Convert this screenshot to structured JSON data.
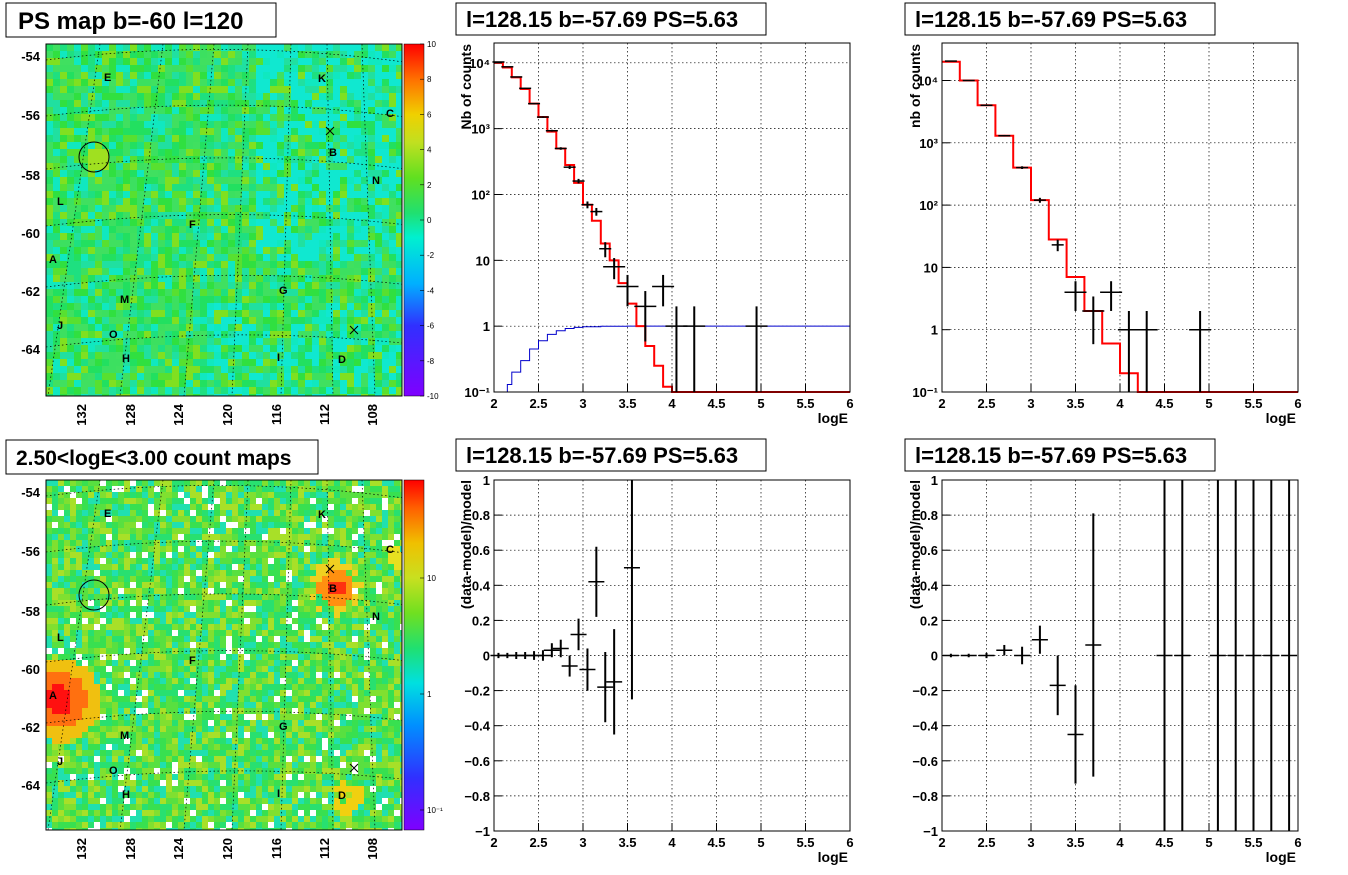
{
  "colors": {
    "red_model": "#ff0000",
    "blue_exposure": "#0000cc",
    "data": "#000000"
  },
  "chart_data": [
    {
      "id": "ps-map",
      "type": "heatmap",
      "title": "PS map b=-60 l=120",
      "xticks": [
        "132",
        "128",
        "124",
        "120",
        "116",
        "112",
        "108"
      ],
      "yticks": [
        "-54",
        "-56",
        "-58",
        "-60",
        "-62",
        "-64"
      ],
      "colorbar": {
        "min": -10,
        "max": 10,
        "ticks": [
          "10",
          "8",
          "6",
          "4",
          "2",
          "0",
          "-2",
          "-4",
          "-6",
          "-8",
          "-10"
        ]
      },
      "sources": [
        "E",
        "K",
        "C",
        "B",
        "N",
        "L",
        "F",
        "A",
        "G",
        "M",
        "J",
        "O",
        "H",
        "I",
        "D"
      ]
    },
    {
      "id": "spectrum-1",
      "type": "line",
      "title": "l=128.15 b=-57.69 PS=5.63",
      "xlabel": "logE",
      "ylabel": "Nb of counts",
      "xlim": [
        2,
        6
      ],
      "ylim": [
        0.1,
        20000
      ],
      "log_y": true,
      "xticks": [
        "2",
        "2.5",
        "3",
        "3.5",
        "4",
        "4.5",
        "5",
        "5.5",
        "6"
      ],
      "yticks": [
        "10⁴",
        "10³",
        "10²",
        "10",
        "1",
        "10⁻¹"
      ],
      "model": {
        "edges": [
          2,
          2.1,
          2.2,
          2.3,
          2.4,
          2.5,
          2.6,
          2.7,
          2.8,
          2.9,
          3.0,
          3.1,
          3.2,
          3.3,
          3.4,
          3.5,
          3.6,
          3.7,
          3.8,
          3.9,
          4.0,
          6.0
        ],
        "values": [
          10000,
          8500,
          6000,
          4000,
          2400,
          1500,
          900,
          500,
          280,
          150,
          70,
          40,
          18,
          10,
          4.5,
          2.2,
          1.0,
          0.5,
          0.25,
          0.12,
          0.1
        ]
      },
      "exposure": {
        "edges": [
          2,
          2.1,
          2.15,
          2.2,
          2.3,
          2.4,
          2.5,
          2.6,
          2.7,
          2.8,
          2.9,
          3.0,
          3.2,
          3.5,
          6.0
        ],
        "values": [
          0.1,
          0.1,
          0.13,
          0.2,
          0.3,
          0.45,
          0.6,
          0.75,
          0.85,
          0.92,
          0.96,
          0.98,
          0.995,
          1.0
        ]
      },
      "data": [
        [
          2.05,
          10300
        ],
        [
          2.15,
          8700
        ],
        [
          2.25,
          6100
        ],
        [
          2.35,
          4100
        ],
        [
          2.45,
          2400
        ],
        [
          2.55,
          1500
        ],
        [
          2.65,
          930
        ],
        [
          2.75,
          500
        ],
        [
          2.85,
          260
        ],
        [
          2.95,
          160
        ],
        [
          3.05,
          70
        ],
        [
          3.15,
          55
        ],
        [
          3.25,
          15
        ],
        [
          3.35,
          8
        ],
        [
          3.5,
          4
        ],
        [
          3.7,
          2
        ],
        [
          3.9,
          4
        ],
        [
          4.05,
          1
        ],
        [
          4.25,
          1
        ],
        [
          4.95,
          1
        ]
      ]
    },
    {
      "id": "spectrum-2",
      "type": "line",
      "title": "l=128.15 b=-57.69 PS=5.63",
      "xlabel": "logE",
      "ylabel": "nb of counts",
      "xlim": [
        2,
        6
      ],
      "ylim": [
        0.1,
        40000
      ],
      "log_y": true,
      "xticks": [
        "2",
        "2.5",
        "3",
        "3.5",
        "4",
        "4.5",
        "5",
        "5.5",
        "6"
      ],
      "yticks": [
        "10⁴",
        "10³",
        "10²",
        "10",
        "1",
        "10⁻¹"
      ],
      "model": {
        "edges": [
          2,
          2.2,
          2.4,
          2.6,
          2.8,
          3.0,
          3.2,
          3.4,
          3.6,
          3.8,
          4.0,
          4.2,
          6.0
        ],
        "values": [
          20000,
          10000,
          4000,
          1300,
          400,
          120,
          28,
          7,
          2,
          0.6,
          0.2,
          0.1
        ]
      },
      "data": [
        [
          2.1,
          20500
        ],
        [
          2.3,
          10000
        ],
        [
          2.5,
          4000
        ],
        [
          2.7,
          1300
        ],
        [
          2.9,
          400
        ],
        [
          3.1,
          120
        ],
        [
          3.3,
          23
        ],
        [
          3.5,
          4
        ],
        [
          3.7,
          2
        ],
        [
          3.9,
          4
        ],
        [
          4.1,
          1
        ],
        [
          4.3,
          1
        ],
        [
          4.9,
          1
        ]
      ]
    },
    {
      "id": "count-map",
      "type": "heatmap",
      "title": "2.50<logE<3.00 count maps",
      "xticks": [
        "132",
        "128",
        "124",
        "120",
        "116",
        "112",
        "108"
      ],
      "yticks": [
        "-54",
        "-56",
        "-58",
        "-60",
        "-62",
        "-64"
      ],
      "colorbar": {
        "log_scale": true,
        "ticks": [
          "10",
          "1",
          "10⁻¹"
        ]
      },
      "sources": [
        "E",
        "K",
        "C",
        "B",
        "N",
        "L",
        "F",
        "A",
        "G",
        "M",
        "J",
        "O",
        "H",
        "I",
        "D"
      ]
    },
    {
      "id": "residual-1",
      "type": "scatter",
      "title": "l=128.15 b=-57.69 PS=5.63",
      "xlabel": "logE",
      "ylabel": "(data-model)/model",
      "xlim": [
        2,
        6
      ],
      "ylim": [
        -1,
        1
      ],
      "xticks": [
        "2",
        "2.5",
        "3",
        "3.5",
        "4",
        "4.5",
        "5",
        "5.5",
        "6"
      ],
      "yticks": [
        "1",
        "0.8",
        "0.6",
        "0.4",
        "0.2",
        "0",
        "−0.2",
        "−0.4",
        "−0.6",
        "−0.8",
        "−1"
      ],
      "data": [
        [
          2.05,
          0.0,
          0.015
        ],
        [
          2.15,
          0.0,
          0.015
        ],
        [
          2.25,
          0.0,
          0.02
        ],
        [
          2.35,
          0.0,
          0.02
        ],
        [
          2.45,
          0.0,
          0.025
        ],
        [
          2.55,
          0.0,
          0.03
        ],
        [
          2.65,
          0.03,
          0.04
        ],
        [
          2.75,
          0.04,
          0.05
        ],
        [
          2.85,
          -0.06,
          0.06
        ],
        [
          2.95,
          0.12,
          0.09
        ],
        [
          3.05,
          -0.08,
          0.12
        ],
        [
          3.15,
          0.42,
          0.2
        ],
        [
          3.25,
          -0.18,
          0.2
        ],
        [
          3.35,
          -0.15,
          0.3
        ],
        [
          3.55,
          0.5,
          0.75
        ]
      ]
    },
    {
      "id": "residual-2",
      "type": "scatter",
      "title": "l=128.15 b=-57.69 PS=5.63",
      "xlabel": "logE",
      "ylabel": "(data-model)/model",
      "xlim": [
        2,
        6
      ],
      "ylim": [
        -1,
        1
      ],
      "xticks": [
        "2",
        "2.5",
        "3",
        "3.5",
        "4",
        "4.5",
        "5",
        "5.5",
        "6"
      ],
      "yticks": [
        "1",
        "0.8",
        "0.6",
        "0.4",
        "0.2",
        "0",
        "−0.2",
        "−0.4",
        "−0.6",
        "−0.8",
        "−1"
      ],
      "data": [
        [
          2.1,
          0.0,
          0.01
        ],
        [
          2.3,
          0.0,
          0.01
        ],
        [
          2.5,
          0.0,
          0.015
        ],
        [
          2.7,
          0.03,
          0.03
        ],
        [
          2.9,
          0.0,
          0.05
        ],
        [
          3.1,
          0.09,
          0.08
        ],
        [
          3.3,
          -0.17,
          0.17
        ],
        [
          3.5,
          -0.45,
          0.28
        ],
        [
          3.7,
          0.06,
          0.75
        ],
        [
          4.5,
          0.0,
          2
        ],
        [
          4.7,
          0.0,
          2
        ],
        [
          5.1,
          0.0,
          2
        ],
        [
          5.3,
          0.0,
          2
        ],
        [
          5.5,
          0.0,
          2
        ],
        [
          5.7,
          0.0,
          2
        ],
        [
          5.9,
          0.0,
          2
        ]
      ]
    }
  ]
}
